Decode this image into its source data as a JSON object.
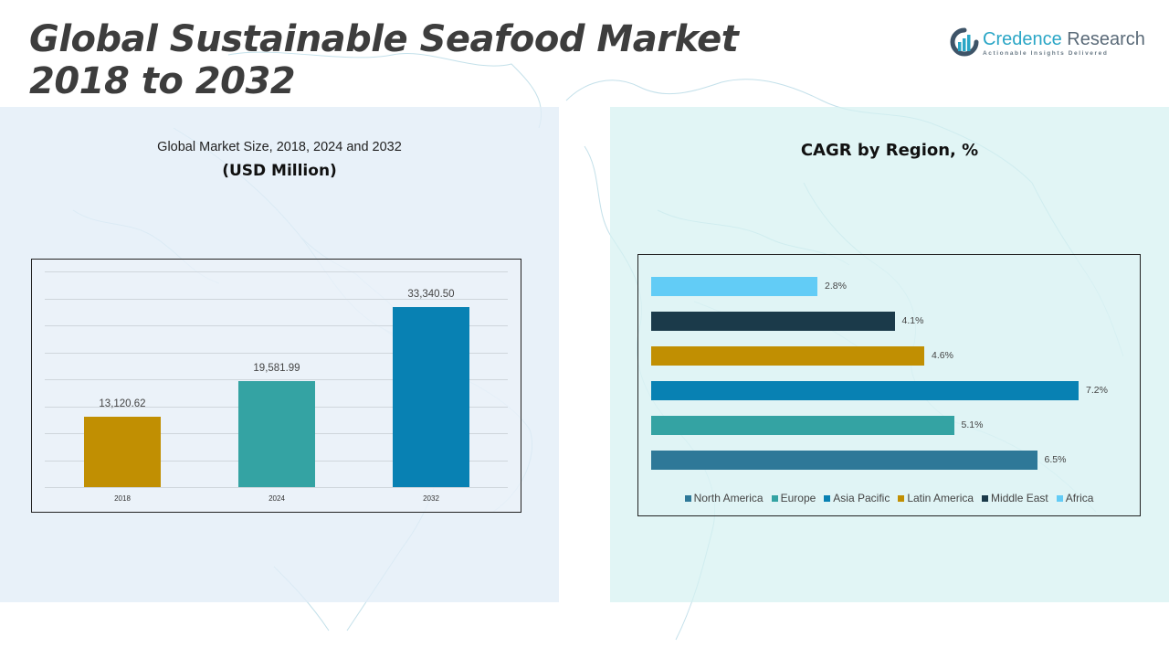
{
  "header": {
    "title_line1": "Global Sustainable Seafood Market",
    "title_line2": "2018 to 2032"
  },
  "logo": {
    "name_part1": "Credence",
    "name_part2": " Research",
    "tagline": "Actionable Insights Delivered",
    "icon": "bar-chart-circle-icon"
  },
  "left_panel": {
    "subtitle": "Global Market Size, 2018, 2024 and 2032",
    "unit": "(USD Million)"
  },
  "right_panel": {
    "title": "CAGR by Region, %"
  },
  "colors": {
    "north_america": "#2e7898",
    "europe": "#34a3a3",
    "asia_pacific": "#0881b3",
    "latin_america": "#c18f02",
    "middle_east": "#1b3a4a",
    "africa": "#62ccf6",
    "bar_2018": "#c18f02",
    "bar_2024": "#34a3a3",
    "bar_2032": "#0881b3"
  },
  "chart_data": [
    {
      "type": "bar",
      "title": "Global Market Size, 2018, 2024 and 2032",
      "subtitle": "(USD Million)",
      "categories": [
        "2018",
        "2024",
        "2032"
      ],
      "values": [
        13120.62,
        19581.99,
        33340.5
      ],
      "value_labels": [
        "13,120.62",
        "19,581.99",
        "33,340.50"
      ],
      "bar_colors": [
        "#c18f02",
        "#34a3a3",
        "#0881b3"
      ],
      "xlabel": "",
      "ylabel": "",
      "ylim": [
        0,
        40000
      ],
      "grid": true,
      "y_axis_visible": false,
      "legend": null
    },
    {
      "type": "bar",
      "orientation": "horizontal",
      "title": "CAGR by Region, %",
      "categories": [
        "North America",
        "Europe",
        "Asia Pacific",
        "Latin America",
        "Middle East",
        "Africa"
      ],
      "values": [
        6.5,
        5.1,
        7.2,
        4.6,
        4.1,
        2.8
      ],
      "value_labels": [
        "6.5%",
        "5.1%",
        "7.2%",
        "4.6%",
        "4.1%",
        "2.8%"
      ],
      "bar_colors": [
        "#2e7898",
        "#34a3a3",
        "#0881b3",
        "#c18f02",
        "#1b3a4a",
        "#62ccf6"
      ],
      "xlabel": "",
      "ylabel": "",
      "grid": false,
      "legend": {
        "position": "bottom",
        "entries": [
          "North America",
          "Europe",
          "Asia Pacific",
          "Latin America",
          "Middle East",
          "Africa"
        ]
      }
    }
  ]
}
